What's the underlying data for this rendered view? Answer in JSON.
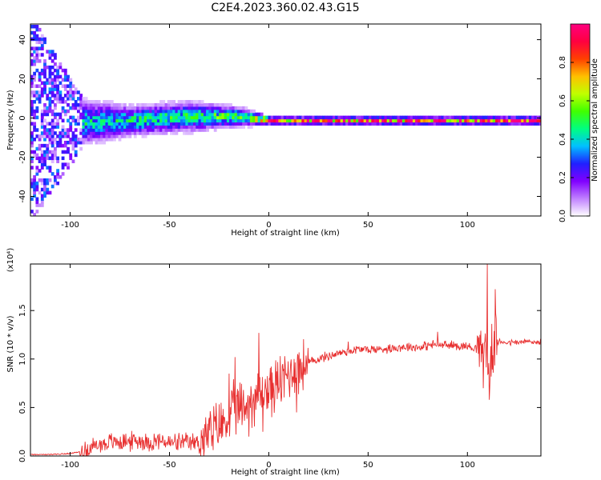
{
  "title": "C2E4.2023.360.02.43.G15",
  "chart_data": [
    {
      "type": "heatmap",
      "title": "C2E4.2023.360.02.43.G15",
      "xlabel": "Height of straight line (km)",
      "ylabel": "Frequency (Hz)",
      "xlim": [
        -120,
        137
      ],
      "ylim": [
        -50,
        48
      ],
      "x_ticks": [
        -100,
        -50,
        0,
        50,
        100
      ],
      "y_ticks": [
        -40,
        -20,
        0,
        20,
        40
      ],
      "x_tick_labels": [
        "-100",
        "-50",
        "0",
        "50",
        "100"
      ],
      "y_tick_labels": [
        "-40",
        "-20",
        "0",
        "20",
        "40"
      ],
      "colorbar": {
        "label": "Normalized spectral amplitude",
        "range": [
          0,
          1
        ],
        "ticks": [
          0.0,
          0.2,
          0.4,
          0.6,
          0.8
        ],
        "tick_labels": [
          "0.0",
          "0.2",
          "0.4",
          "0.6",
          "0.8"
        ],
        "colormap": [
          "#ffffff",
          "#c080ff",
          "#8000ff",
          "#2020ff",
          "#00c0ff",
          "#00ff80",
          "#40ff00",
          "#c0ff00",
          "#ffc000",
          "#ff4000",
          "#ff0040",
          "#ff0080"
        ]
      },
      "band_profile": [
        {
          "x": -120,
          "center": -1,
          "halfwidth": 45,
          "peak": 0.25
        },
        {
          "x": -95,
          "center": -3,
          "halfwidth": 12,
          "peak": 0.45
        },
        {
          "x": -70,
          "center": -2,
          "halfwidth": 8,
          "peak": 0.5
        },
        {
          "x": -40,
          "center": 0,
          "halfwidth": 8,
          "peak": 0.52
        },
        {
          "x": -15,
          "center": 0,
          "halfwidth": 5,
          "peak": 0.6
        },
        {
          "x": 0,
          "center": -2,
          "halfwidth": 2,
          "peak": 0.9
        },
        {
          "x": 50,
          "center": -2,
          "halfwidth": 2,
          "peak": 1.0
        },
        {
          "x": 100,
          "center": -2,
          "halfwidth": 2,
          "peak": 1.0
        },
        {
          "x": 137,
          "center": -2,
          "halfwidth": 2,
          "peak": 1.0
        }
      ]
    },
    {
      "type": "line",
      "xlabel": "Height of straight line (km)",
      "ylabel": "SNR (10 * v/v)",
      "scale_label": "(x10⁴)",
      "xlim": [
        -120,
        137
      ],
      "ylim": [
        0,
        1.98
      ],
      "x_ticks": [
        -100,
        -50,
        0,
        50,
        100
      ],
      "y_ticks": [
        0.0,
        0.5,
        1.0,
        1.5
      ],
      "x_tick_labels": [
        "-100",
        "-50",
        "0",
        "50",
        "100"
      ],
      "y_tick_labels": [
        "0.0",
        "0.5",
        "1.0",
        "1.5"
      ],
      "color": "#e83030",
      "series": [
        {
          "x": [
            -120,
            -110,
            -100,
            -95,
            -90,
            -85,
            -80,
            -75,
            -70,
            -65,
            -60,
            -55,
            -50,
            -45,
            -40,
            -35,
            -30,
            -25,
            -20,
            -18,
            -15,
            -12,
            -10,
            -8,
            -5,
            -3,
            0,
            3,
            5,
            8,
            10,
            12,
            15,
            18,
            20,
            25,
            30,
            35,
            40,
            45,
            50,
            55,
            60,
            65,
            70,
            75,
            80,
            85,
            90,
            95,
            100,
            103,
            105,
            108,
            110,
            111,
            112,
            113,
            115,
            118,
            120,
            125,
            130,
            137
          ],
          "y": [
            0.01,
            0.01,
            0.02,
            0.04,
            0.08,
            0.12,
            0.14,
            0.15,
            0.15,
            0.16,
            0.14,
            0.16,
            0.13,
            0.14,
            0.13,
            0.15,
            0.22,
            0.3,
            0.4,
            0.45,
            0.48,
            0.5,
            0.55,
            0.6,
            0.62,
            0.65,
            0.68,
            0.72,
            0.74,
            0.8,
            0.85,
            0.88,
            0.9,
            0.93,
            0.96,
            1.0,
            1.03,
            1.06,
            1.08,
            1.1,
            1.1,
            1.1,
            1.11,
            1.12,
            1.13,
            1.12,
            1.14,
            1.15,
            1.14,
            1.14,
            1.13,
            1.12,
            1.12,
            1.1,
            1.05,
            0.8,
            1.0,
            1.15,
            1.17,
            1.18,
            1.17,
            1.17,
            1.18,
            1.17
          ]
        }
      ],
      "spikes": [
        {
          "x": -20,
          "y": 0.85
        },
        {
          "x": -17,
          "y": 1.02
        },
        {
          "x": -10,
          "y": 0.2
        },
        {
          "x": -5,
          "y": 1.27
        },
        {
          "x": -3,
          "y": 0.25
        },
        {
          "x": 8,
          "y": 1.03
        },
        {
          "x": 14,
          "y": 0.45
        },
        {
          "x": 40,
          "y": 1.18
        },
        {
          "x": 85,
          "y": 1.28
        },
        {
          "x": 108,
          "y": 0.7
        },
        {
          "x": 110,
          "y": 1.98
        },
        {
          "x": 111,
          "y": 0.58
        },
        {
          "x": 114,
          "y": 1.72
        }
      ],
      "noise": [
        {
          "x0": -120,
          "x1": -95,
          "amp": 0.01
        },
        {
          "x0": -95,
          "x1": -35,
          "amp": 0.12
        },
        {
          "x0": -35,
          "x1": 20,
          "amp": 0.35
        },
        {
          "x0": 20,
          "x1": 60,
          "amp": 0.06
        },
        {
          "x0": 60,
          "x1": 105,
          "amp": 0.06
        },
        {
          "x0": 105,
          "x1": 115,
          "amp": 0.35
        },
        {
          "x0": 115,
          "x1": 137,
          "amp": 0.04
        }
      ]
    }
  ]
}
